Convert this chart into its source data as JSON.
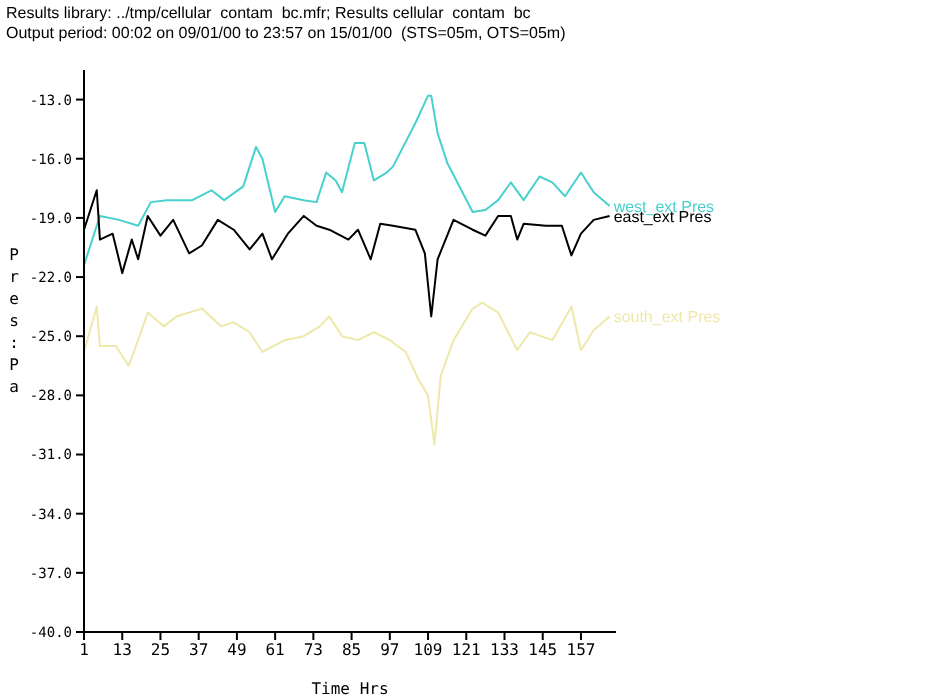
{
  "chart_data": {
    "type": "line",
    "title": "Results library: ../tmp/cellular  contam  bc.mfr; Results cellular  contam  bc",
    "subtitle": "Output period: 00:02 on 09/01/00 to 23:57 on 15/01/00  (STS=05m, OTS=05m)",
    "xlabel": "Time Hrs",
    "ylabel": "Pres: Pa",
    "marker": "none",
    "line_style": "solid",
    "xlim": [
      1,
      168
    ],
    "xticks": [
      1,
      13,
      25,
      37,
      49,
      61,
      73,
      85,
      97,
      109,
      121,
      133,
      145,
      157
    ],
    "ylim": [
      -40,
      -11.5
    ],
    "yticks": [
      {
        "value": -13,
        "label": "-13.0"
      },
      {
        "value": -16,
        "label": "-16.0"
      },
      {
        "value": -19,
        "label": "-19.0"
      },
      {
        "value": -22,
        "label": "-22.0"
      },
      {
        "value": -25,
        "label": "-25.0"
      },
      {
        "value": -28,
        "label": "-28.0"
      },
      {
        "value": -31,
        "label": "-31.0"
      },
      {
        "value": -34,
        "label": "-34.0"
      },
      {
        "value": -37,
        "label": "-37.0"
      },
      {
        "value": -40,
        "label": "-40.0"
      }
    ],
    "series": [
      {
        "name": "west_ext Pres",
        "color": "#48d1cc",
        "x": [
          1,
          6,
          12,
          18,
          22,
          27,
          35,
          41,
          45,
          51,
          55,
          57,
          61,
          64,
          70,
          74,
          77,
          80,
          82,
          86,
          89,
          92,
          96,
          98,
          105,
          109,
          110,
          112,
          115,
          123,
          127,
          131,
          135,
          139,
          144,
          148,
          152,
          157,
          161,
          166
        ],
        "values": [
          -21.4,
          -18.9,
          -19.1,
          -19.4,
          -18.2,
          -18.1,
          -18.1,
          -17.6,
          -18.1,
          -17.4,
          -15.4,
          -16,
          -18.7,
          -17.9,
          -18.1,
          -18.2,
          -16.7,
          -17.1,
          -17.7,
          -15.2,
          -15.2,
          -17.1,
          -16.7,
          -16.4,
          -14.2,
          -12.8,
          -12.8,
          -14.7,
          -16.2,
          -18.7,
          -18.6,
          -18.1,
          -17.2,
          -18.1,
          -16.9,
          -17.2,
          -17.9,
          -16.7,
          -17.7,
          -18.4
        ]
      },
      {
        "name": "east_ext Pres",
        "color": "#000000",
        "x": [
          1,
          5,
          6,
          10,
          13,
          16,
          18,
          21,
          25,
          29,
          34,
          38,
          43,
          48,
          53,
          57,
          60,
          65,
          70,
          74,
          78,
          84,
          87,
          91,
          94,
          98,
          105,
          108,
          110,
          112,
          117,
          123,
          127,
          131,
          135,
          137,
          139,
          146,
          151,
          154,
          157,
          161,
          166
        ],
        "values": [
          -19.6,
          -17.6,
          -20.1,
          -19.8,
          -21.8,
          -20.1,
          -21.1,
          -18.9,
          -19.9,
          -19.1,
          -20.8,
          -20.4,
          -19.1,
          -19.6,
          -20.6,
          -19.8,
          -21.1,
          -19.8,
          -18.9,
          -19.4,
          -19.6,
          -20.1,
          -19.6,
          -21.1,
          -19.3,
          -19.4,
          -19.6,
          -20.8,
          -24,
          -21.1,
          -19.1,
          -19.6,
          -19.9,
          -18.9,
          -18.9,
          -20.1,
          -19.3,
          -19.4,
          -19.4,
          -20.9,
          -19.8,
          -19.1,
          -18.9
        ]
      },
      {
        "name": "south_ext Pres",
        "color": "#eee8aa",
        "x": [
          1,
          5,
          6,
          11,
          15,
          18,
          21,
          26,
          30,
          38,
          44,
          48,
          53,
          57,
          64,
          70,
          75,
          78,
          82,
          87,
          92,
          97,
          102,
          106,
          109,
          111,
          113,
          117,
          123,
          126,
          131,
          137,
          141,
          148,
          154,
          157,
          161,
          166
        ],
        "values": [
          -25.8,
          -23.5,
          -25.5,
          -25.5,
          -26.5,
          -25.2,
          -23.8,
          -24.5,
          -24,
          -23.6,
          -24.5,
          -24.3,
          -24.8,
          -25.8,
          -25.2,
          -25,
          -24.5,
          -24,
          -25,
          -25.2,
          -24.8,
          -25.2,
          -25.8,
          -27.2,
          -28,
          -30.5,
          -27,
          -25.2,
          -23.6,
          -23.3,
          -23.8,
          -25.7,
          -24.8,
          -25.2,
          -23.5,
          -25.7,
          -24.7,
          -24
        ]
      }
    ]
  }
}
